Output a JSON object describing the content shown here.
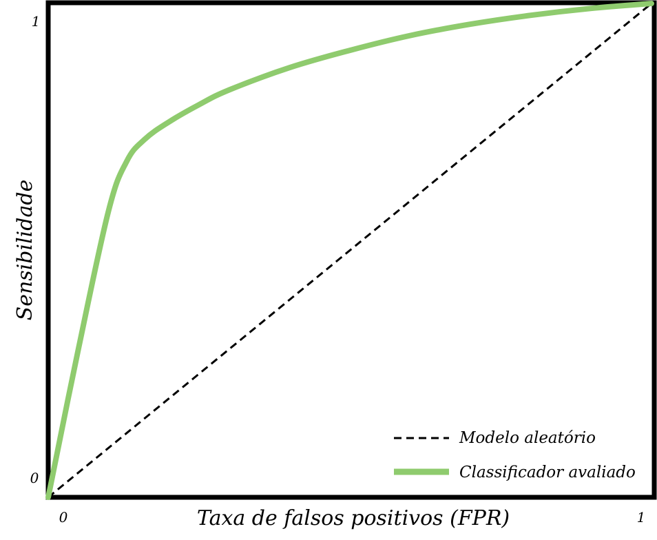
{
  "chart_data": {
    "type": "line",
    "title": "",
    "xlabel": "Taxa de falsos positivos (FPR)",
    "ylabel": "Sensibilidade",
    "xlim": [
      0,
      1
    ],
    "ylim": [
      0,
      1
    ],
    "grid": false,
    "x_ticks": [
      {
        "value": 0,
        "label": "0"
      },
      {
        "value": 1,
        "label": "1"
      }
    ],
    "y_ticks": [
      {
        "value": 0,
        "label": "0"
      },
      {
        "value": 1,
        "label": "1"
      }
    ],
    "legend_position": "bottom-right",
    "series": [
      {
        "name": "Modelo aleatório",
        "style": "dashed",
        "color": "#000000",
        "x": [
          0,
          1
        ],
        "y": [
          0,
          1
        ]
      },
      {
        "name": "Classificador avaliado",
        "style": "solid",
        "color": "#8fcb6e",
        "x": [
          0,
          0.05,
          0.1,
          0.13,
          0.16,
          0.2,
          0.25,
          0.3,
          0.4,
          0.5,
          0.6,
          0.7,
          0.8,
          0.9,
          1.0
        ],
        "y": [
          0,
          0.3,
          0.58,
          0.68,
          0.725,
          0.76,
          0.795,
          0.825,
          0.87,
          0.905,
          0.935,
          0.958,
          0.976,
          0.99,
          1.0
        ]
      }
    ]
  }
}
